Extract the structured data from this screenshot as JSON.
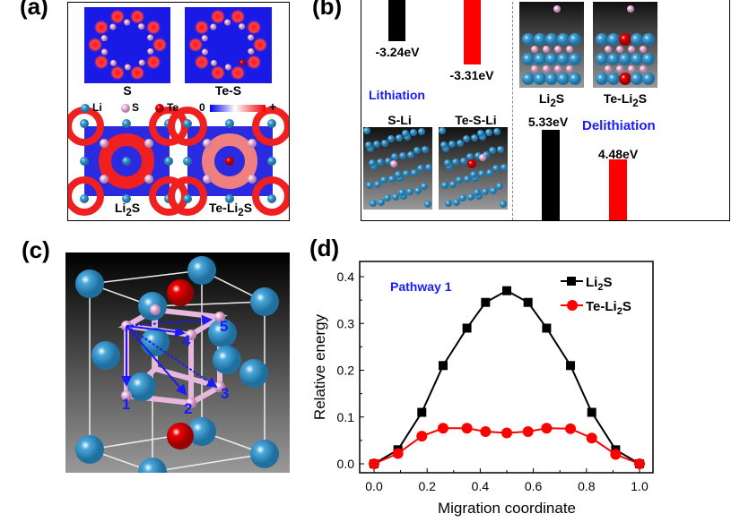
{
  "panels": {
    "a": {
      "label": "(a)",
      "maps": [
        "S",
        "Te-S"
      ],
      "bottom_maps_prefix": [
        "Li",
        "Te-Li"
      ],
      "subscript": "2",
      "suffix": "S",
      "legend": {
        "li": "Li",
        "s": "S",
        "te": "Te",
        "scale_min": "0",
        "scale_max": "+"
      }
    },
    "b": {
      "label": "(b)",
      "lithiation_title": "Lithiation",
      "delithiation_title": "Delithiation",
      "lith_values": [
        "-3.24eV",
        "-3.31eV"
      ],
      "delith_values": [
        "5.33eV",
        "4.48eV"
      ],
      "lith_structures": [
        "S-Li",
        "Te-S-Li"
      ],
      "delith_structures_prefix": [
        "Li",
        "Te-Li"
      ],
      "subscript": "2",
      "suffix": "S"
    },
    "c": {
      "label": "(c)",
      "sites": [
        "1",
        "2",
        "3",
        "4",
        "5"
      ]
    },
    "d": {
      "label": "(d)"
    }
  },
  "colors": {
    "li2s": "#000000",
    "te_li2s": "#ff0000",
    "annotation": "#1a1aff",
    "li_atom": "#4aa8dc",
    "s_atom": "#f0c0e0",
    "te_atom": "#ee0000",
    "map_blue": "#1a1ae6"
  },
  "chart_data": {
    "type": "line",
    "annotation": "Pathway 1",
    "xlabel": "Migration  coordinate",
    "ylabel": "Relative energy",
    "xlim": [
      -0.05,
      1.05
    ],
    "ylim": [
      -0.012,
      0.44
    ],
    "xticks": [
      "0.0",
      "0.2",
      "0.4",
      "0.6",
      "0.8",
      "1.0"
    ],
    "yticks": [
      "0.0",
      "0.1",
      "0.2",
      "0.3",
      "0.4"
    ],
    "grid": false,
    "legend_placement": "top-right",
    "x": [
      0,
      0.09,
      0.18,
      0.26,
      0.35,
      0.42,
      0.5,
      0.58,
      0.65,
      0.74,
      0.82,
      0.91,
      1.0
    ],
    "series": [
      {
        "name_prefix": "Li",
        "name_sub": "2",
        "name_suffix": "S",
        "marker": "square",
        "color": "#000000",
        "values": [
          0,
          0.03,
          0.11,
          0.21,
          0.29,
          0.345,
          0.37,
          0.345,
          0.29,
          0.21,
          0.11,
          0.03,
          0
        ]
      },
      {
        "name_prefix": "Te-Li",
        "name_sub": "2",
        "name_suffix": "S",
        "marker": "circle",
        "color": "#ff0000",
        "values": [
          0,
          0.022,
          0.059,
          0.076,
          0.076,
          0.069,
          0.066,
          0.069,
          0.076,
          0.075,
          0.055,
          0.02,
          0
        ]
      }
    ]
  }
}
